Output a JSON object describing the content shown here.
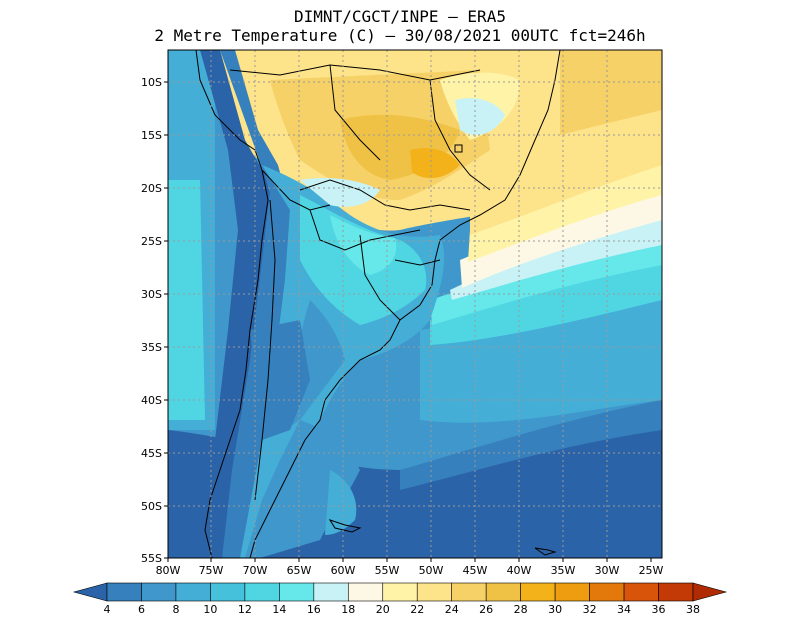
{
  "title": {
    "line1": "DIMNT/CGCT/INPE –  ERA5",
    "line2": "2 Metre Temperature (C) –  30/08/2021 00UTC fct=246h"
  },
  "axes": {
    "lat_labels": [
      "10S",
      "15S",
      "20S",
      "25S",
      "30S",
      "35S",
      "40S",
      "45S",
      "50S",
      "55S"
    ],
    "lon_labels": [
      "80W",
      "75W",
      "70W",
      "65W",
      "60W",
      "55W",
      "50W",
      "45W",
      "40W",
      "35W",
      "30W",
      "25W"
    ]
  },
  "colorbar": {
    "levels": [
      "4",
      "6",
      "8",
      "10",
      "12",
      "14",
      "16",
      "18",
      "20",
      "22",
      "24",
      "26",
      "28",
      "30",
      "32",
      "34",
      "36",
      "38"
    ],
    "colors": [
      "#2b63a8",
      "#3680bd",
      "#3f97cb",
      "#44aed6",
      "#45c1dc",
      "#50d6e2",
      "#66e7ea",
      "#c8f2f5",
      "#fdf8e6",
      "#fff3a8",
      "#fde389",
      "#f6d167",
      "#efc245",
      "#f4b21a",
      "#ee9d10",
      "#e4790b",
      "#d8540a",
      "#c43a06",
      "#b02a03"
    ]
  }
}
